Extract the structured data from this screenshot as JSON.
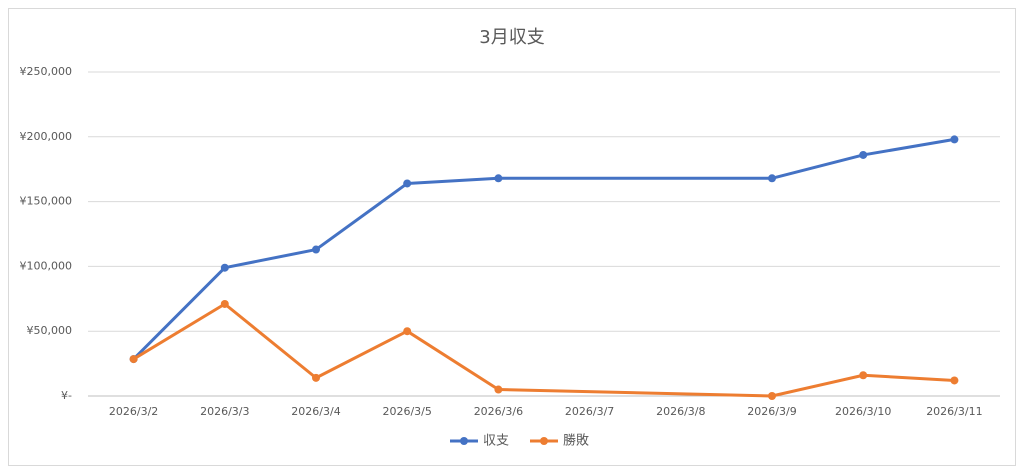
{
  "chart_data": {
    "type": "line",
    "title": "3月収支",
    "categories": [
      "2026/3/2",
      "2026/3/3",
      "2026/3/4",
      "2026/3/5",
      "2026/3/6",
      "2026/3/7",
      "2026/3/8",
      "2026/3/9",
      "2026/3/10",
      "2026/3/11"
    ],
    "series": [
      {
        "name": "収支",
        "color": "#4472c4",
        "values": [
          28500,
          99000,
          113000,
          164000,
          168000,
          null,
          null,
          168000,
          186000,
          198000
        ]
      },
      {
        "name": "勝敗",
        "color": "#ed7d31",
        "values": [
          28500,
          71000,
          14000,
          50000,
          5000,
          null,
          null,
          0,
          16000,
          12000
        ]
      }
    ],
    "span_gaps": true,
    "ylim": [
      0,
      250000
    ],
    "yticks": [
      {
        "value": 0,
        "label": "¥-"
      },
      {
        "value": 50000,
        "label": "¥50,000"
      },
      {
        "value": 100000,
        "label": "¥100,000"
      },
      {
        "value": 150000,
        "label": "¥150,000"
      },
      {
        "value": 200000,
        "label": "¥200,000"
      },
      {
        "value": 250000,
        "label": "¥250,000"
      }
    ],
    "grid": true,
    "legend": "bottom"
  }
}
